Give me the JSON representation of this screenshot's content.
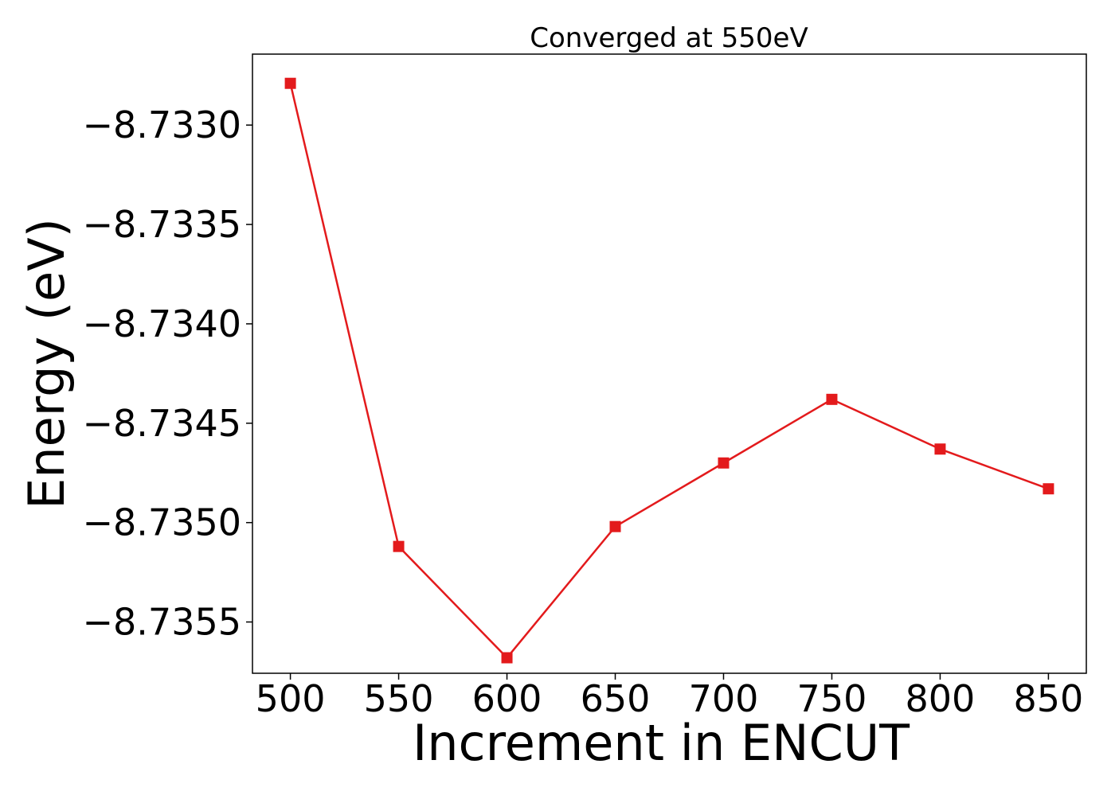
{
  "chart_data": {
    "type": "line",
    "title": "Converged at 550eV",
    "xlabel": "Increment in ENCUT",
    "ylabel": "Energy (eV)",
    "x": [
      500,
      550,
      600,
      650,
      700,
      750,
      800,
      850
    ],
    "series": [
      {
        "values": [
          -8.73279,
          -8.73512,
          -8.73568,
          -8.73502,
          -8.7347,
          -8.73438,
          -8.73463,
          -8.73483
        ]
      }
    ],
    "xticks": [
      500,
      550,
      600,
      650,
      700,
      750,
      800,
      850
    ],
    "xtick_labels": [
      "500",
      "550",
      "600",
      "650",
      "700",
      "750",
      "800",
      "850"
    ],
    "yticks": [
      -8.733,
      -8.7335,
      -8.734,
      -8.7345,
      -8.735,
      -8.7355
    ],
    "ytick_labels": [
      "−8.7330",
      "−8.7335",
      "−8.7340",
      "−8.7345",
      "−8.7350",
      "−8.7355"
    ],
    "xlim": [
      482.5,
      867.5
    ],
    "ylim": [
      -8.735758,
      -8.732643
    ],
    "grid": false,
    "legend": "none",
    "line_color": "#e31a1c",
    "marker": "square"
  }
}
